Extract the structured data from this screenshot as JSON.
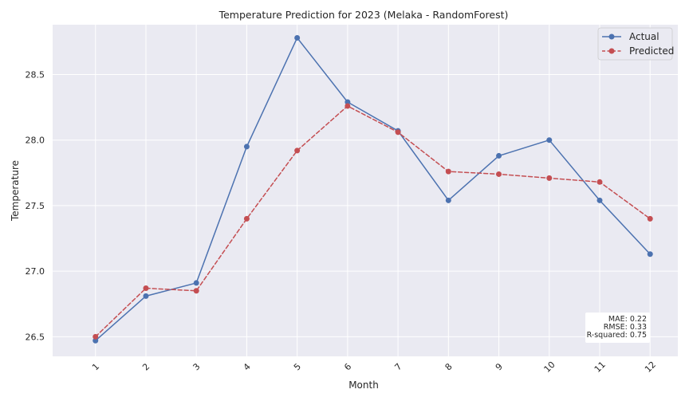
{
  "chart_data": {
    "type": "line",
    "title": "Temperature Prediction for 2023 (Melaka - RandomForest)",
    "xlabel": "Month",
    "ylabel": "Temperature",
    "x": [
      1,
      2,
      3,
      4,
      5,
      6,
      7,
      8,
      9,
      10,
      11,
      12
    ],
    "x_tick_labels": [
      "1",
      "2",
      "3",
      "4",
      "5",
      "6",
      "7",
      "8",
      "9",
      "10",
      "11",
      "12"
    ],
    "y_ticks": [
      26.5,
      27.0,
      27.5,
      28.0,
      28.5
    ],
    "y_tick_labels": [
      "26.5",
      "27.0",
      "27.5",
      "28.0",
      "28.5"
    ],
    "ylim": [
      26.35,
      28.88
    ],
    "xlim": [
      0.15,
      12.55
    ],
    "grid": true,
    "legend_position": "top-right",
    "series": [
      {
        "name": "Actual",
        "color": "#4c72b0",
        "line_style": "solid",
        "marker": "circle",
        "values": [
          26.47,
          26.81,
          26.91,
          27.95,
          28.78,
          28.29,
          28.07,
          27.54,
          27.88,
          28.0,
          27.54,
          27.13
        ]
      },
      {
        "name": "Predicted",
        "color": "#c44e52",
        "line_style": "dashed",
        "marker": "circle",
        "values": [
          26.5,
          26.87,
          26.85,
          27.4,
          27.92,
          28.26,
          28.06,
          27.76,
          27.74,
          27.71,
          27.68,
          27.4
        ]
      }
    ],
    "metrics": {
      "lines": [
        "MAE: 0.22",
        "RMSE: 0.33",
        "R-squared: 0.75"
      ]
    },
    "colors": {
      "plot_background": "#eaeaf2",
      "grid": "#ffffff"
    }
  }
}
